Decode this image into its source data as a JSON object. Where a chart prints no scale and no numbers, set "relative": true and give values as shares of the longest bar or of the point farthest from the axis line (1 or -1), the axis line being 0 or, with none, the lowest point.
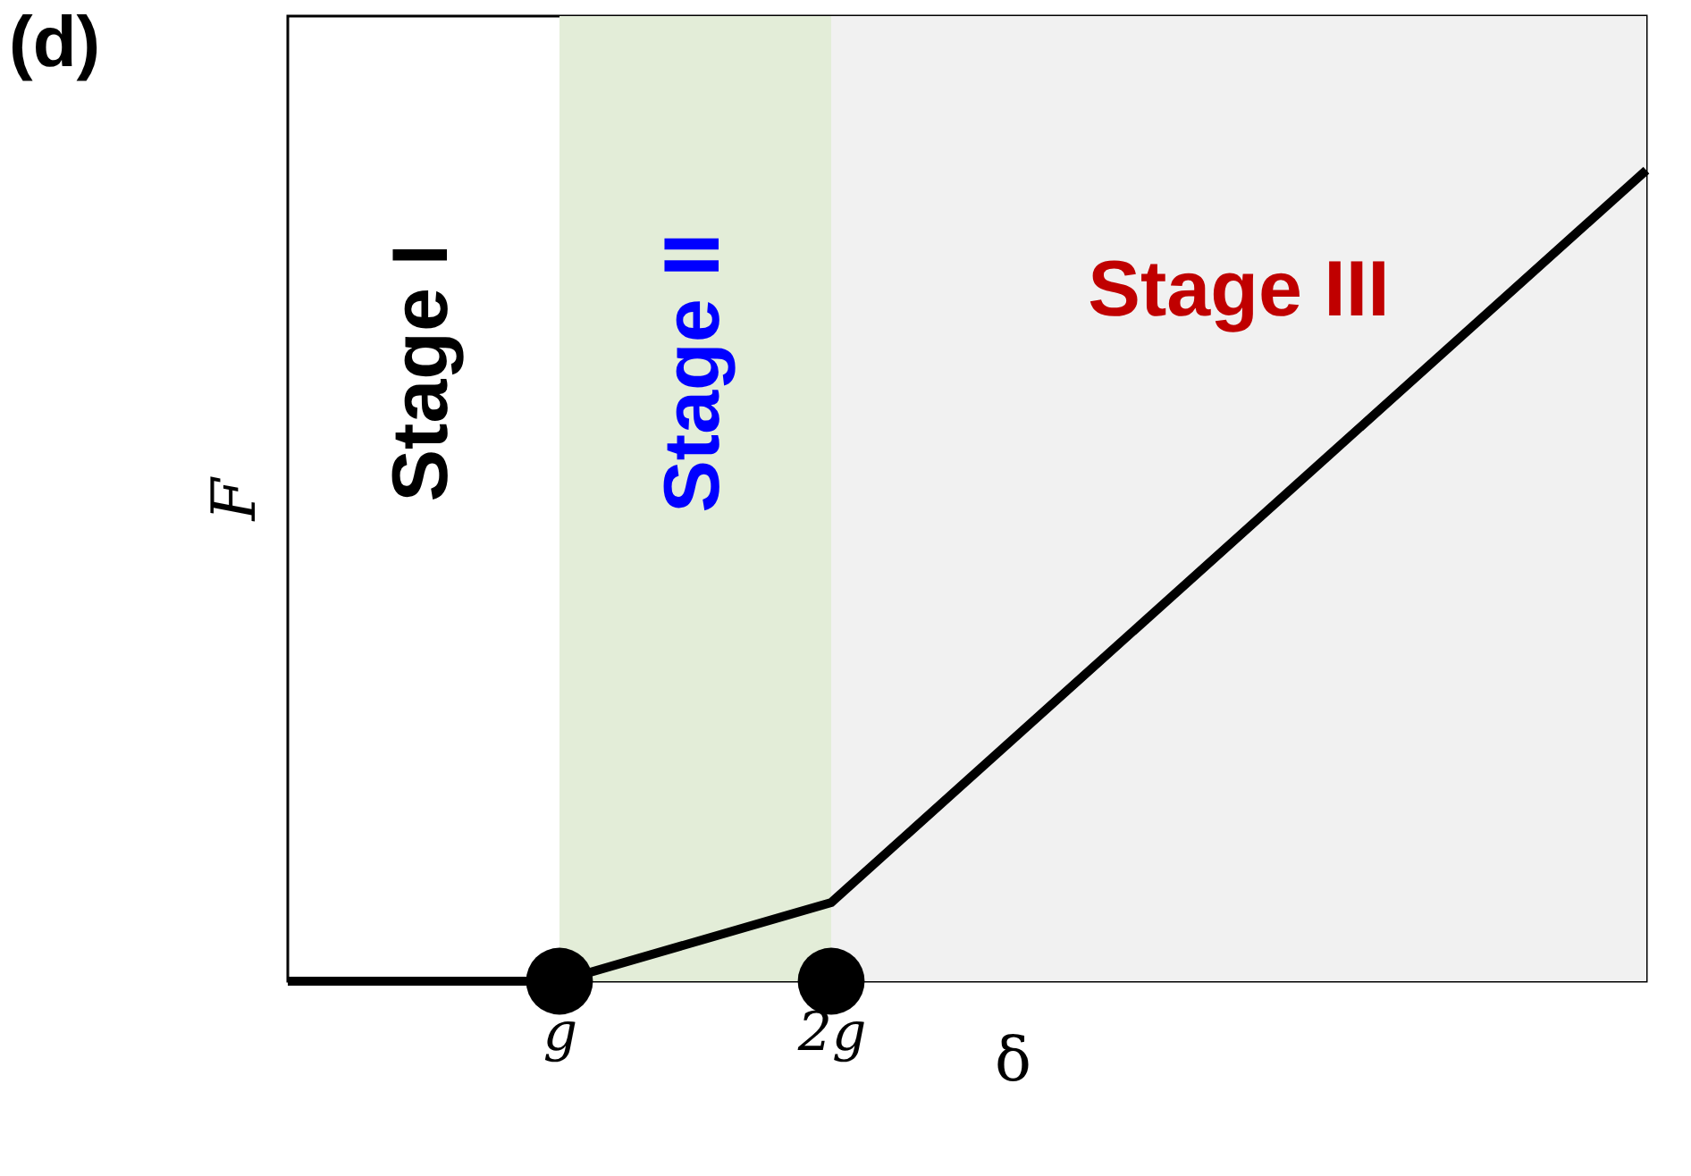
{
  "chart_data": {
    "type": "line",
    "title": "(d)",
    "xlabel": "δ",
    "ylabel": "F",
    "relative": true,
    "grid": false,
    "categories": [
      null,
      null,
      "g",
      null,
      "2g",
      null,
      null,
      null,
      null,
      null,
      null
    ],
    "series": [
      {
        "color": "#000000",
        "values": [
          0,
          null,
          0,
          null,
          0.097,
          null,
          null,
          null,
          null,
          null,
          1
        ],
        "marker": "none"
      },
      {
        "type": "scatter",
        "color": "#000000",
        "values": [
          null,
          null,
          0,
          null,
          0,
          null,
          null,
          null,
          null,
          null,
          null
        ],
        "marker": "circle"
      }
    ],
    "bands": [
      {
        "axis": "x",
        "from": "g",
        "to": "2g",
        "label": "Stage II",
        "color": "#e3edd8"
      }
    ],
    "annotations": [
      "Stage I",
      "Stage III"
    ]
  }
}
